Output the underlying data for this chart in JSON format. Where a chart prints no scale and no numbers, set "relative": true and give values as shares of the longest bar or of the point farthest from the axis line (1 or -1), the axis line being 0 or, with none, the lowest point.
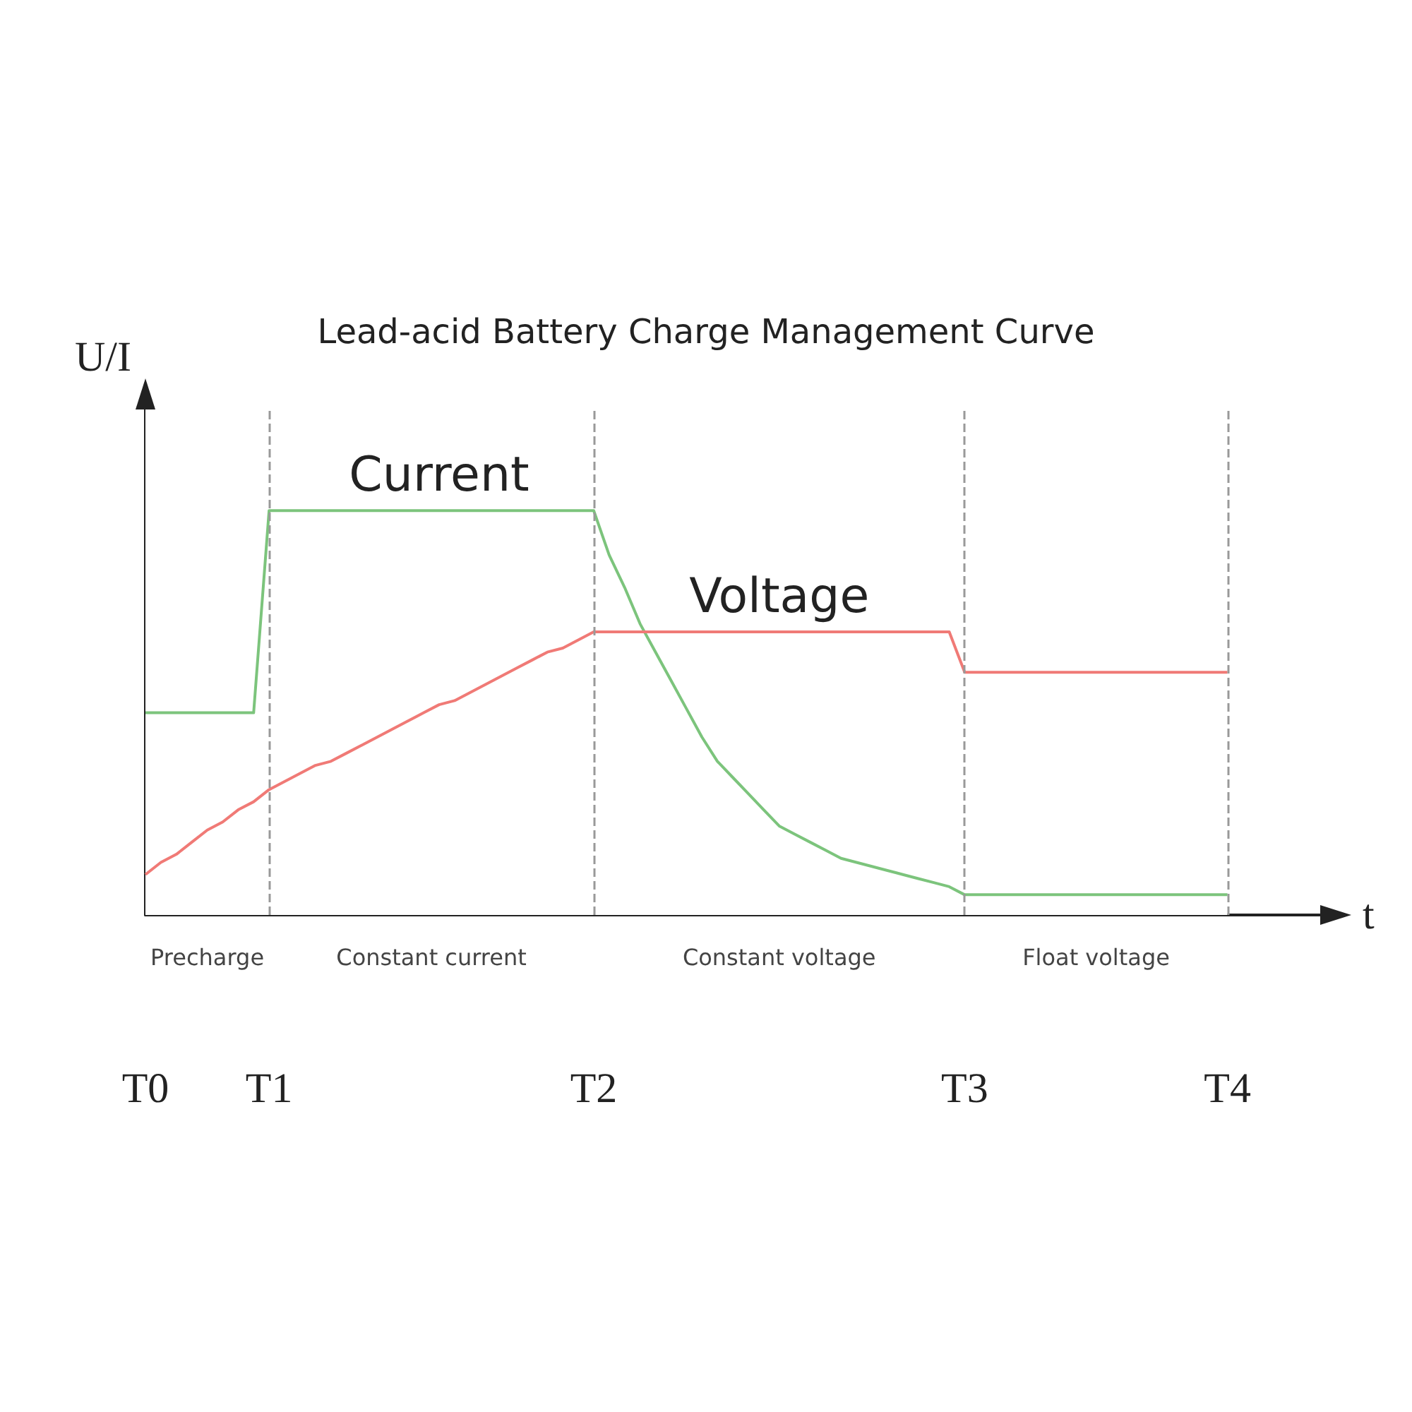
{
  "chart_data": {
    "type": "line",
    "title": "Lead-acid Battery Charge Management Curve",
    "xlabel": "t",
    "ylabel": "U/I",
    "relative": true,
    "categories": [
      "T0",
      null,
      null,
      null,
      null,
      null,
      null,
      null,
      "T1",
      null,
      null,
      null,
      null,
      null,
      null,
      null,
      null,
      null,
      null,
      null,
      null,
      null,
      null,
      null,
      null,
      null,
      null,
      null,
      null,
      "T2",
      null,
      null,
      null,
      null,
      null,
      null,
      null,
      null,
      null,
      null,
      null,
      null,
      null,
      null,
      null,
      null,
      null,
      null,
      null,
      null,
      null,
      null,
      null,
      "T3",
      null,
      null,
      null,
      null,
      null,
      null,
      null,
      null,
      null,
      null,
      null,
      null,
      null,
      null,
      null,
      null,
      "T4",
      null,
      null,
      null,
      null,
      null,
      null
    ],
    "series": [
      {
        "name": "Current",
        "color": "#7cc47c",
        "values": [
          0.5,
          0.5,
          0.5,
          0.5,
          0.5,
          0.5,
          0.5,
          0.5,
          1,
          1,
          1,
          1,
          1,
          1,
          1,
          1,
          1,
          1,
          1,
          1,
          1,
          1,
          1,
          1,
          1,
          1,
          1,
          1,
          1,
          1,
          0.89,
          0.81,
          0.72,
          0.65,
          0.58,
          0.51,
          0.44,
          0.38,
          0.34,
          0.3,
          0.26,
          0.22,
          0.2,
          0.18,
          0.16,
          0.14,
          0.13,
          0.12,
          0.11,
          0.1,
          0.09,
          0.08,
          0.07,
          0.05,
          0.05,
          0.05,
          0.05,
          0.05,
          0.05,
          0.05,
          0.05,
          0.05,
          0.05,
          0.05,
          0.05,
          0.05,
          0.05,
          0.05,
          0.05,
          0.05,
          0.05,
          null,
          null,
          null,
          null,
          null,
          null
        ]
      },
      {
        "name": "Voltage",
        "color": "#f07a76",
        "values": [
          0.1,
          0.13,
          0.15,
          0.18,
          0.21,
          0.23,
          0.26,
          0.28,
          0.31,
          0.33,
          0.35,
          0.37,
          0.38,
          0.4,
          0.42,
          0.44,
          0.46,
          0.48,
          0.5,
          0.52,
          0.53,
          0.55,
          0.57,
          0.59,
          0.61,
          0.63,
          0.65,
          0.66,
          0.68,
          0.7,
          0.7,
          0.7,
          0.7,
          0.7,
          0.7,
          0.7,
          0.7,
          0.7,
          0.7,
          0.7,
          0.7,
          0.7,
          0.7,
          0.7,
          0.7,
          0.7,
          0.7,
          0.7,
          0.7,
          0.7,
          0.7,
          0.7,
          0.7,
          0.6,
          0.6,
          0.6,
          0.6,
          0.6,
          0.6,
          0.6,
          0.6,
          0.6,
          0.6,
          0.6,
          0.6,
          0.6,
          0.6,
          0.6,
          0.6,
          0.6,
          0.6,
          null,
          null,
          null,
          null,
          null,
          null
        ]
      }
    ],
    "ref_lines": [
      {
        "axis": "x",
        "value": "T1",
        "color": "#999999",
        "line_style": "dashed"
      },
      {
        "axis": "x",
        "value": "T2",
        "color": "#999999",
        "line_style": "dashed"
      },
      {
        "axis": "x",
        "value": "T3",
        "color": "#999999",
        "line_style": "dashed"
      },
      {
        "axis": "x",
        "value": "T4",
        "color": "#999999",
        "line_style": "dashed"
      }
    ],
    "bands": [
      {
        "axis": "x",
        "from": "T0",
        "to": "T1",
        "label": "Precharge",
        "color": "#ffffff"
      },
      {
        "axis": "x",
        "from": "T1",
        "to": "T2",
        "label": "Constant current",
        "color": "#ffffff"
      },
      {
        "axis": "x",
        "from": "T2",
        "to": "T3",
        "label": "Constant voltage",
        "color": "#ffffff"
      },
      {
        "axis": "x",
        "from": "T3",
        "to": "T4",
        "label": "Float voltage",
        "color": "#ffffff"
      }
    ],
    "tick_labels": "x",
    "grid": false,
    "legend": false,
    "marker": "none",
    "line_style": "solid"
  }
}
